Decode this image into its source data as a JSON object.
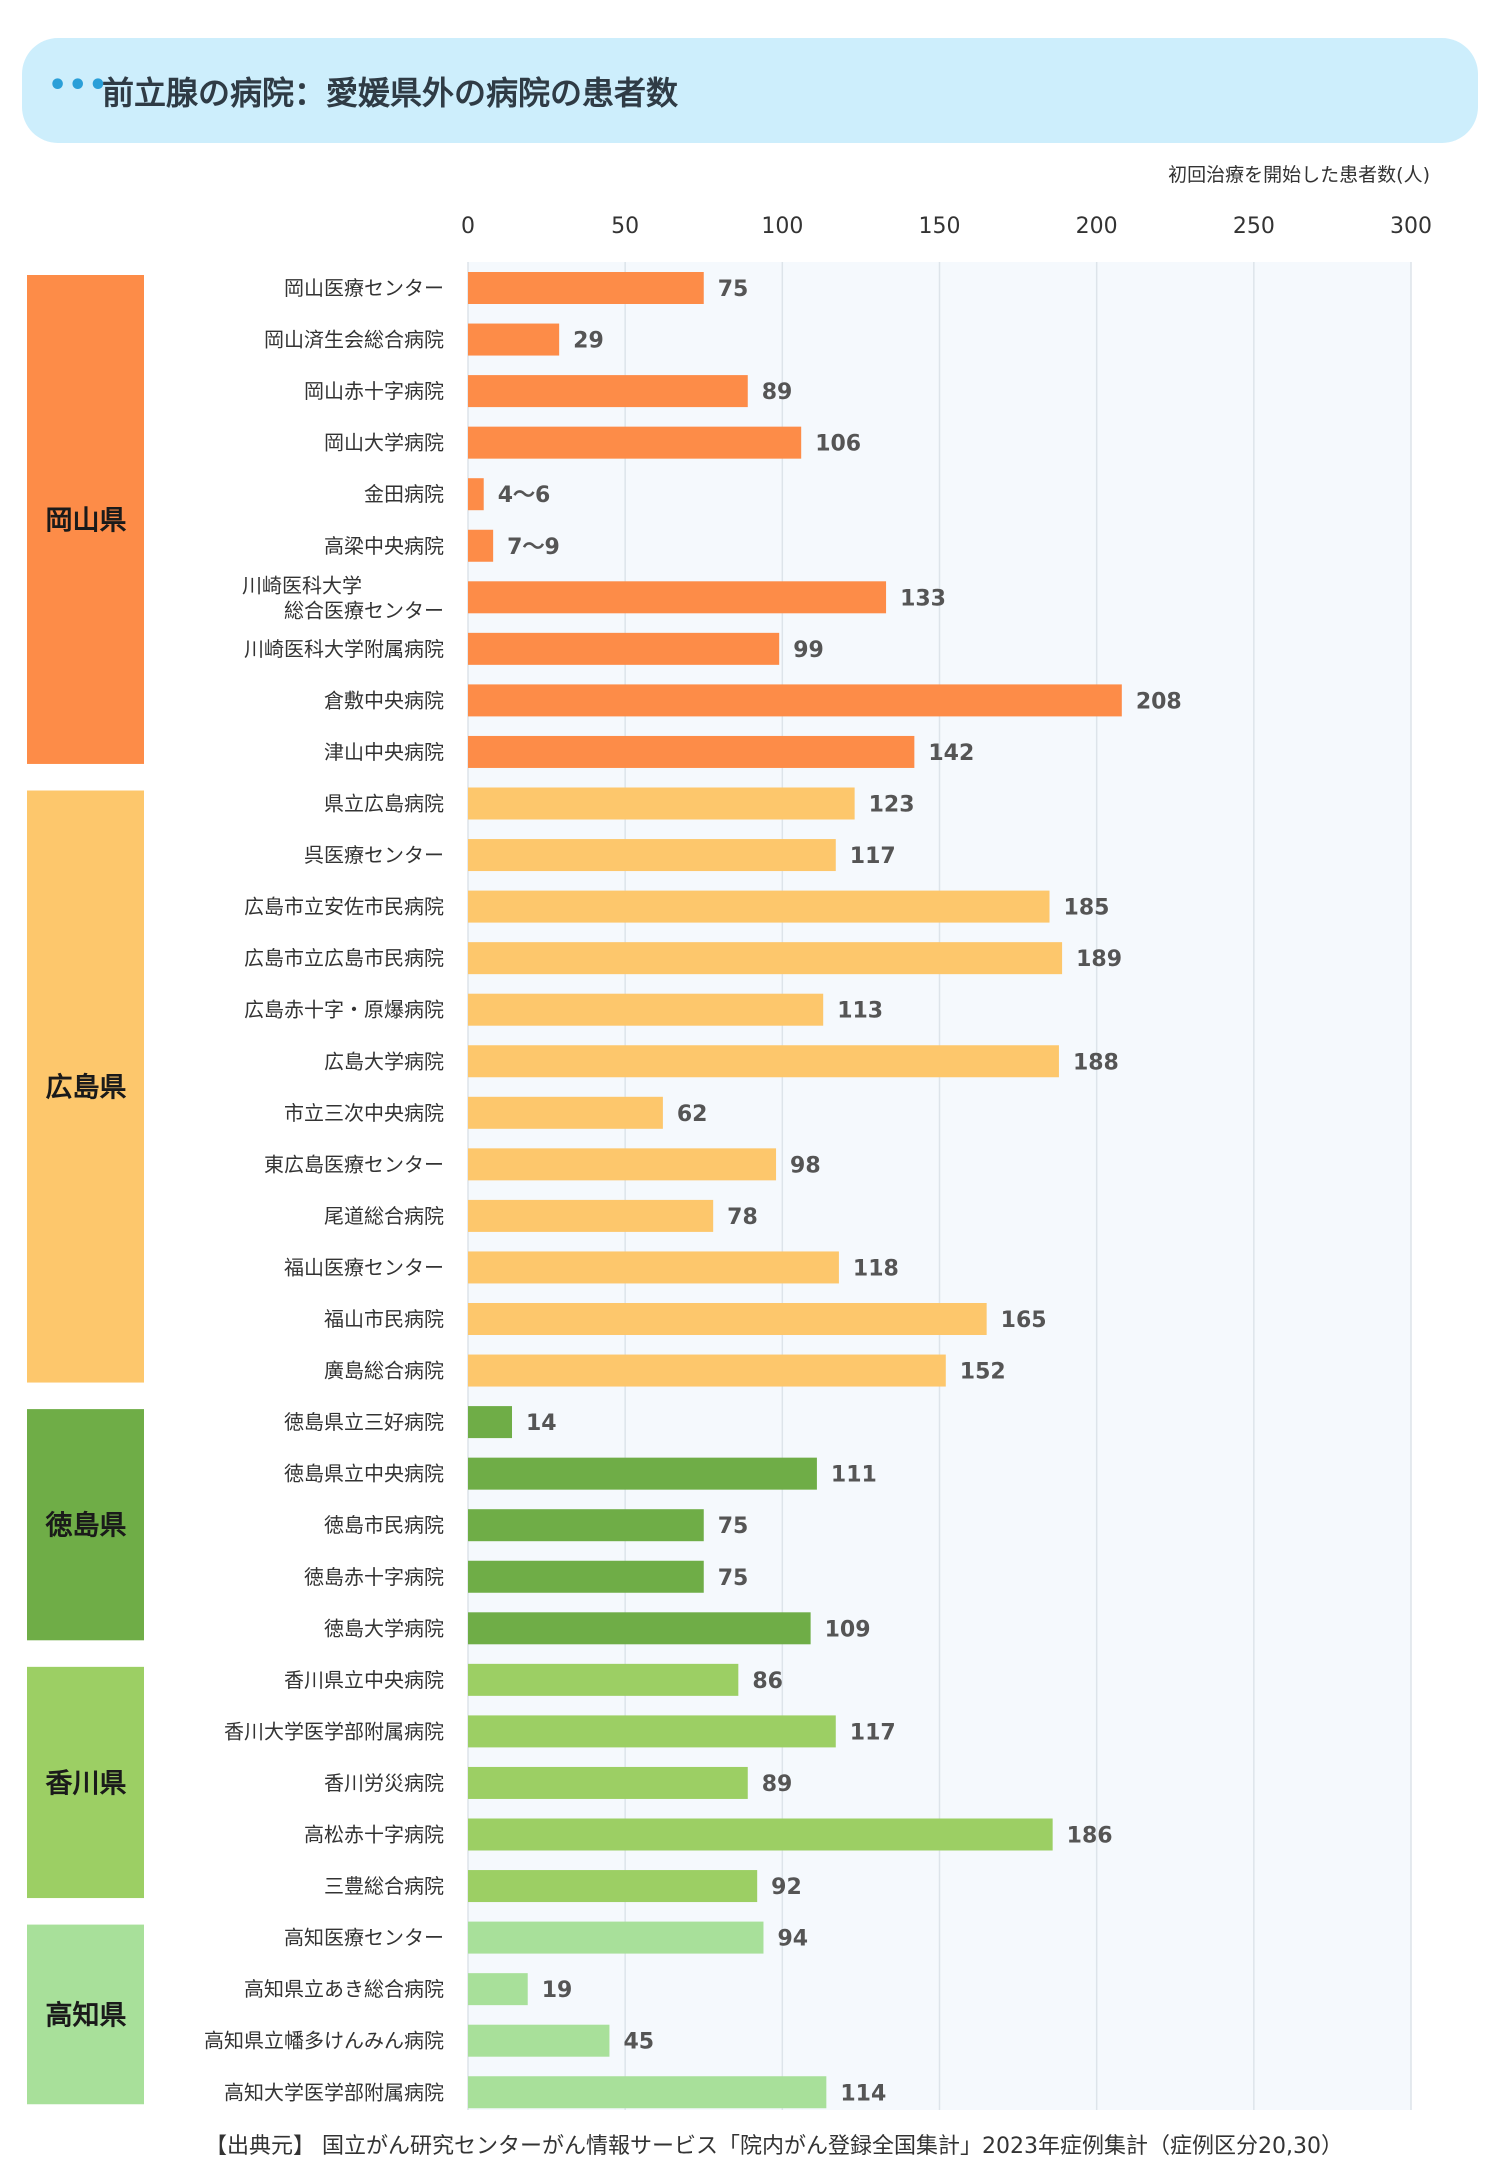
{
  "title": "前立腺の病院：愛媛県外の病院の患者数",
  "title_dots": "•••",
  "source": "【出典元】 国立がん研究センターがん情報サービス「院内がん登録全国集計」2023年症例集計（症例区分20,30）",
  "colors": {
    "okayama": "#fd8c48",
    "hiroshima": "#fdc76c",
    "tokushima": "#6fad47",
    "kagawa": "#9ccf64",
    "kochi": "#a8e09a",
    "plot_bg": "#f5f9fd",
    "grid": "#dde4ea"
  },
  "chart_data": {
    "type": "bar",
    "orientation": "horizontal",
    "xlabel": "初回治療を開始した患者数(人)",
    "xlim": [
      0,
      300
    ],
    "xticks": [
      0,
      50,
      100,
      150,
      200,
      250,
      300
    ],
    "grid": true,
    "groups": [
      {
        "name": "岡山県",
        "color_key": "okayama",
        "items": [
          {
            "name": "岡山医療センター",
            "value": 75,
            "label": "75"
          },
          {
            "name": "岡山済生会総合病院",
            "value": 29,
            "label": "29"
          },
          {
            "name": "岡山赤十字病院",
            "value": 89,
            "label": "89"
          },
          {
            "name": "岡山大学病院",
            "value": 106,
            "label": "106"
          },
          {
            "name": "金田病院",
            "value": 5,
            "label": "4〜6"
          },
          {
            "name": "高梁中央病院",
            "value": 8,
            "label": "7〜9"
          },
          {
            "name": "川崎医科大学\n総合医療センター",
            "value": 133,
            "label": "133"
          },
          {
            "name": "川崎医科大学附属病院",
            "value": 99,
            "label": "99"
          },
          {
            "name": "倉敷中央病院",
            "value": 208,
            "label": "208"
          },
          {
            "name": "津山中央病院",
            "value": 142,
            "label": "142"
          }
        ]
      },
      {
        "name": "広島県",
        "color_key": "hiroshima",
        "items": [
          {
            "name": "県立広島病院",
            "value": 123,
            "label": "123"
          },
          {
            "name": "呉医療センター",
            "value": 117,
            "label": "117"
          },
          {
            "name": "広島市立安佐市民病院",
            "value": 185,
            "label": "185"
          },
          {
            "name": "広島市立広島市民病院",
            "value": 189,
            "label": "189"
          },
          {
            "name": "広島赤十字・原爆病院",
            "value": 113,
            "label": "113"
          },
          {
            "name": "広島大学病院",
            "value": 188,
            "label": "188"
          },
          {
            "name": "市立三次中央病院",
            "value": 62,
            "label": "62"
          },
          {
            "name": "東広島医療センター",
            "value": 98,
            "label": "98"
          },
          {
            "name": "尾道総合病院",
            "value": 78,
            "label": "78"
          },
          {
            "name": "福山医療センター",
            "value": 118,
            "label": "118"
          },
          {
            "name": "福山市民病院",
            "value": 165,
            "label": "165"
          },
          {
            "name": "廣島総合病院",
            "value": 152,
            "label": "152"
          }
        ]
      },
      {
        "name": "徳島県",
        "color_key": "tokushima",
        "items": [
          {
            "name": "徳島県立三好病院",
            "value": 14,
            "label": "14"
          },
          {
            "name": "徳島県立中央病院",
            "value": 111,
            "label": "111"
          },
          {
            "name": "徳島市民病院",
            "value": 75,
            "label": "75"
          },
          {
            "name": "徳島赤十字病院",
            "value": 75,
            "label": "75"
          },
          {
            "name": "徳島大学病院",
            "value": 109,
            "label": "109"
          }
        ]
      },
      {
        "name": "香川県",
        "color_key": "kagawa",
        "items": [
          {
            "name": "香川県立中央病院",
            "value": 86,
            "label": "86"
          },
          {
            "name": "香川大学医学部附属病院",
            "value": 117,
            "label": "117"
          },
          {
            "name": "香川労災病院",
            "value": 89,
            "label": "89"
          },
          {
            "name": "高松赤十字病院",
            "value": 186,
            "label": "186"
          },
          {
            "name": "三豊総合病院",
            "value": 92,
            "label": "92"
          }
        ]
      },
      {
        "name": "高知県",
        "color_key": "kochi",
        "items": [
          {
            "name": "高知医療センター",
            "value": 94,
            "label": "94"
          },
          {
            "name": "高知県立あき総合病院",
            "value": 19,
            "label": "19"
          },
          {
            "name": "高知県立幡多けんみん病院",
            "value": 45,
            "label": "45"
          },
          {
            "name": "高知大学医学部附属病院",
            "value": 114,
            "label": "114"
          }
        ]
      }
    ]
  }
}
